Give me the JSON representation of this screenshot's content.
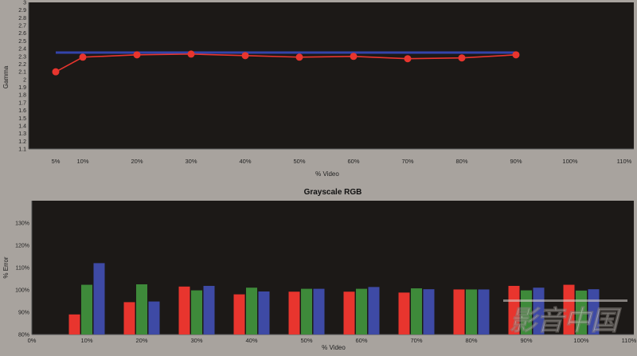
{
  "chart_data": [
    {
      "type": "line",
      "title": "",
      "xlabel": "% Video",
      "ylabel": "Gamma",
      "ylim": [
        1.1,
        3.0
      ],
      "y_ticks": [
        "1.1",
        "1.2",
        "1.3",
        "1.4",
        "1.5",
        "1.6",
        "1.7",
        "1.8",
        "1.9",
        "2",
        "2.1",
        "2.2",
        "2.3",
        "2.4",
        "2.5",
        "2.6",
        "2.7",
        "2.8",
        "2.9",
        "3"
      ],
      "x_ticks": [
        "5%",
        "10%",
        "20%",
        "30%",
        "40%",
        "50%",
        "60%",
        "70%",
        "80%",
        "90%",
        "100%",
        "110%"
      ],
      "x_tick_values": [
        5,
        10,
        20,
        30,
        40,
        50,
        60,
        70,
        80,
        90,
        100,
        110
      ],
      "series": [
        {
          "name": "",
          "color": "#3344aa",
          "x": [
            5,
            90
          ],
          "values": [
            2.35,
            2.35
          ],
          "markers": false
        },
        {
          "name": "",
          "color": "#e8352e",
          "x": [
            5,
            10,
            20,
            30,
            40,
            50,
            60,
            70,
            80,
            90
          ],
          "values": [
            2.1,
            2.29,
            2.32,
            2.33,
            2.31,
            2.29,
            2.3,
            2.27,
            2.28,
            2.32
          ],
          "markers": true
        }
      ],
      "grid": false
    },
    {
      "type": "bar",
      "title": "Grayscale RGB",
      "xlabel": "% Video",
      "ylabel": "% Error",
      "ylim": [
        80,
        140
      ],
      "y_ticks": [
        "80%",
        "90%",
        "100%",
        "110%",
        "120%",
        "130%"
      ],
      "x_ticks": [
        "0%",
        "10%",
        "20%",
        "30%",
        "40%",
        "50%",
        "60%",
        "70%",
        "80%",
        "90%",
        "100%",
        "110%"
      ],
      "x_tick_values": [
        0,
        10,
        20,
        30,
        40,
        50,
        60,
        70,
        80,
        90,
        100,
        110
      ],
      "categories": [
        10,
        20,
        30,
        40,
        50,
        60,
        70,
        80,
        90,
        100
      ],
      "series": [
        {
          "name": "",
          "color": "#e8352e",
          "values": [
            89,
            94.5,
            101.5,
            98,
            99.2,
            99.2,
            98.8,
            100.2,
            101.8,
            102.3
          ]
        },
        {
          "name": "",
          "color": "#3e8a3a",
          "values": [
            102.3,
            102.5,
            99.8,
            101,
            100.5,
            100.5,
            100.7,
            100.2,
            99.8,
            99.7
          ]
        },
        {
          "name": "",
          "color": "#3e4aa5",
          "values": [
            112,
            94.8,
            101.8,
            99.3,
            100.5,
            101.3,
            100.3,
            100.2,
            101,
            100.3
          ]
        }
      ],
      "grid": false
    }
  ],
  "watermark": {
    "text": "影音中国"
  }
}
